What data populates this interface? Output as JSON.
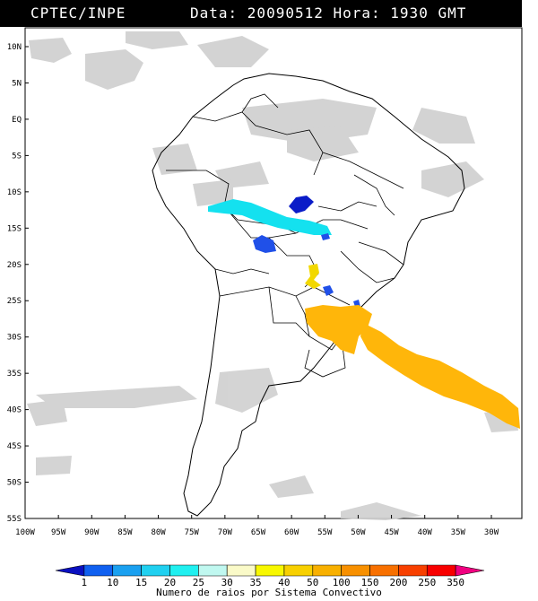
{
  "header": {
    "agency": "CPTEC/INPE",
    "datetime": "Data: 20090512 Hora: 1930 GMT"
  },
  "map": {
    "lat_labels": [
      "10N",
      "5N",
      "EQ",
      "5S",
      "10S",
      "15S",
      "20S",
      "25S",
      "30S",
      "35S",
      "40S",
      "45S",
      "50S",
      "55S"
    ],
    "lon_labels": [
      "100W",
      "95W",
      "90W",
      "85W",
      "80W",
      "75W",
      "70W",
      "65W",
      "60W",
      "55W",
      "50W",
      "45W",
      "40W",
      "35W",
      "30W"
    ],
    "lat_values": [
      10,
      5,
      0,
      -5,
      -10,
      -15,
      -20,
      -25,
      -30,
      -35,
      -40,
      -45,
      -50,
      -55
    ],
    "lon_values": [
      -100,
      -95,
      -90,
      -85,
      -80,
      -75,
      -70,
      -65,
      -60,
      -55,
      -50,
      -45,
      -40,
      -35,
      -30
    ],
    "systems": [
      {
        "name": "cyan-band-bolivia",
        "category": "20",
        "color": "#14e1ef"
      },
      {
        "name": "dark-blue-central-brazil",
        "category": "1",
        "color": "#0a1cc8"
      },
      {
        "name": "blue-paraguay",
        "category": "10",
        "color": "#2050e8"
      },
      {
        "name": "yellow-small-paraguay",
        "category": "40",
        "color": "#f2d800"
      },
      {
        "name": "orange-rs-uruguay",
        "category": "50",
        "color": "#ffb60a"
      },
      {
        "name": "orange-atlantic-band",
        "category": "50",
        "color": "#ffb60a"
      }
    ]
  },
  "scale": {
    "labels": [
      "1",
      "10",
      "15",
      "20",
      "25",
      "30",
      "35",
      "40",
      "50",
      "100",
      "150",
      "200",
      "250",
      "350"
    ],
    "colors": [
      "#0a10c0",
      "#1060f0",
      "#1aa0f0",
      "#20d0f0",
      "#20f0f0",
      "#c0f8f0",
      "#fafac8",
      "#f8f800",
      "#f8d000",
      "#f8b000",
      "#f89000",
      "#f87000",
      "#f84000",
      "#f80000",
      "#f00080"
    ],
    "title": "Numero de raios por Sistema Convectivo"
  }
}
